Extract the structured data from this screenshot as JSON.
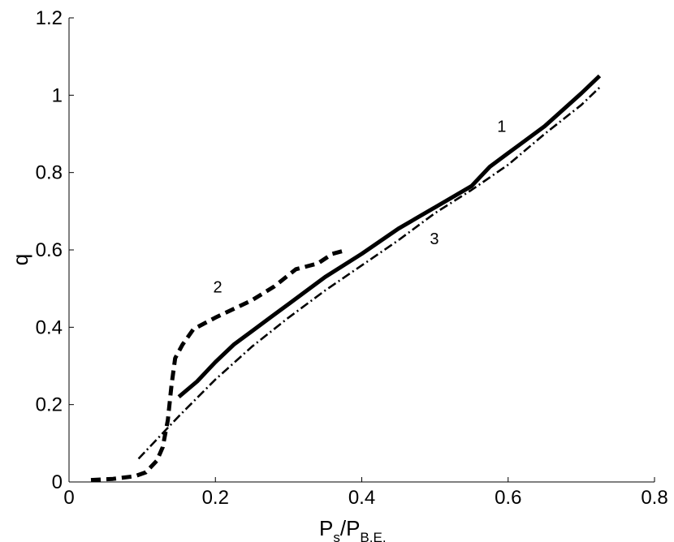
{
  "chart_data": {
    "type": "line",
    "xlabel": {
      "main": "P",
      "sub1": "s",
      "sep": "/P",
      "sub2": "B.E."
    },
    "ylabel": "q",
    "xlim": [
      0,
      0.8
    ],
    "ylim": [
      0,
      1.2
    ],
    "xticks": [
      "0",
      "0.2",
      "0.4",
      "0.6",
      "0.8"
    ],
    "yticks": [
      "0",
      "0.2",
      "0.4",
      "0.6",
      "0.8",
      "1",
      "1.2"
    ],
    "grid": false,
    "series": [
      {
        "name": "1",
        "style": "solid",
        "x": [
          0.15,
          0.175,
          0.2,
          0.225,
          0.25,
          0.275,
          0.3,
          0.35,
          0.4,
          0.45,
          0.5,
          0.55,
          0.575,
          0.6,
          0.65,
          0.7,
          0.725
        ],
        "y": [
          0.22,
          0.26,
          0.31,
          0.355,
          0.39,
          0.425,
          0.46,
          0.53,
          0.59,
          0.655,
          0.71,
          0.765,
          0.815,
          0.85,
          0.92,
          1.005,
          1.05
        ]
      },
      {
        "name": "2",
        "style": "dashed",
        "x": [
          0.03,
          0.06,
          0.09,
          0.105,
          0.12,
          0.128,
          0.135,
          0.14,
          0.145,
          0.155,
          0.17,
          0.2,
          0.25,
          0.28,
          0.31,
          0.34,
          0.36,
          0.38
        ],
        "y": [
          0.005,
          0.008,
          0.015,
          0.025,
          0.055,
          0.09,
          0.16,
          0.25,
          0.32,
          0.355,
          0.395,
          0.425,
          0.47,
          0.505,
          0.55,
          0.565,
          0.59,
          0.6
        ]
      },
      {
        "name": "3",
        "style": "dashdot",
        "x": [
          0.095,
          0.12,
          0.15,
          0.2,
          0.25,
          0.3,
          0.35,
          0.4,
          0.45,
          0.5,
          0.55,
          0.6,
          0.65,
          0.7,
          0.725
        ],
        "y": [
          0.06,
          0.11,
          0.17,
          0.265,
          0.35,
          0.425,
          0.495,
          0.56,
          0.625,
          0.695,
          0.755,
          0.82,
          0.9,
          0.975,
          1.02
        ]
      }
    ],
    "annotations": [
      {
        "text": "1",
        "x": 0.585,
        "y": 0.905
      },
      {
        "text": "2",
        "x": 0.197,
        "y": 0.49
      },
      {
        "text": "3",
        "x": 0.493,
        "y": 0.615
      }
    ]
  }
}
